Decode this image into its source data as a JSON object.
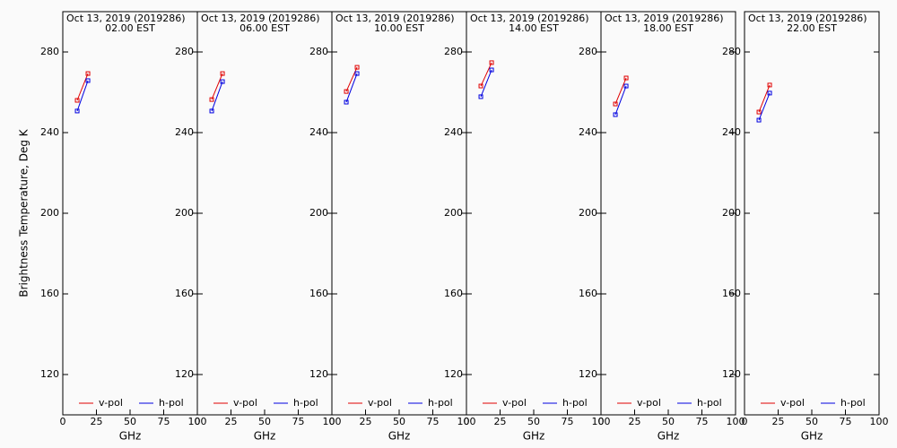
{
  "chart_data": [
    {
      "type": "line",
      "title": "Oct 13, 2019 (2019286)",
      "subtitle": "02.00 EST",
      "ylabel": "Brightness Temperature, Deg K",
      "xlabel": "GHz",
      "x": [
        10.7,
        18.7
      ],
      "xlim": [
        0,
        100
      ],
      "xticks": [
        0,
        25,
        50,
        75,
        100
      ],
      "ylim": [
        100,
        300
      ],
      "yticks": [
        120,
        160,
        200,
        240,
        280
      ],
      "series": [
        {
          "name": "v-pol",
          "color": "#e00000",
          "values": [
            256.0,
            269.3
          ]
        },
        {
          "name": "h-pol",
          "color": "#0000e0",
          "values": [
            250.7,
            265.8
          ]
        }
      ]
    },
    {
      "type": "line",
      "title": "Oct 13, 2019 (2019286)",
      "subtitle": "06.00 EST",
      "xlabel": "GHz",
      "x": [
        10.7,
        18.7
      ],
      "xlim": [
        0,
        100
      ],
      "xticks": [
        0,
        25,
        50,
        75,
        100
      ],
      "ylim": [
        100,
        300
      ],
      "yticks": [
        120,
        160,
        200,
        240,
        280
      ],
      "series": [
        {
          "name": "v-pol",
          "color": "#e00000",
          "values": [
            256.4,
            269.3
          ]
        },
        {
          "name": "h-pol",
          "color": "#0000e0",
          "values": [
            250.7,
            265.3
          ]
        }
      ]
    },
    {
      "type": "line",
      "title": "Oct 13, 2019 (2019286)",
      "subtitle": "10.00 EST",
      "xlabel": "GHz",
      "x": [
        10.7,
        18.7
      ],
      "xlim": [
        0,
        100
      ],
      "xticks": [
        0,
        25,
        50,
        75,
        100
      ],
      "ylim": [
        100,
        300
      ],
      "yticks": [
        120,
        160,
        200,
        240,
        280
      ],
      "series": [
        {
          "name": "v-pol",
          "color": "#e00000",
          "values": [
            260.4,
            272.4
          ]
        },
        {
          "name": "h-pol",
          "color": "#0000e0",
          "values": [
            255.1,
            269.3
          ]
        }
      ]
    },
    {
      "type": "line",
      "title": "Oct 13, 2019 (2019286)",
      "subtitle": "14.00 EST",
      "xlabel": "GHz",
      "x": [
        10.7,
        18.7
      ],
      "xlim": [
        0,
        100
      ],
      "xticks": [
        0,
        25,
        50,
        75,
        100
      ],
      "ylim": [
        100,
        300
      ],
      "yticks": [
        120,
        160,
        200,
        240,
        280
      ],
      "series": [
        {
          "name": "v-pol",
          "color": "#e00000",
          "values": [
            263.1,
            274.7
          ]
        },
        {
          "name": "h-pol",
          "color": "#0000e0",
          "values": [
            257.8,
            271.1
          ]
        }
      ]
    },
    {
      "type": "line",
      "title": "Oct 13, 2019 (2019286)",
      "subtitle": "18.00 EST",
      "xlabel": "GHz",
      "x": [
        10.7,
        18.7
      ],
      "xlim": [
        0,
        100
      ],
      "xticks": [
        0,
        25,
        50,
        75,
        100
      ],
      "ylim": [
        100,
        300
      ],
      "yticks": [
        120,
        160,
        200,
        240,
        280
      ],
      "series": [
        {
          "name": "v-pol",
          "color": "#e00000",
          "values": [
            254.2,
            267.1
          ]
        },
        {
          "name": "h-pol",
          "color": "#0000e0",
          "values": [
            248.9,
            263.1
          ]
        }
      ]
    },
    {
      "type": "line",
      "title": "Oct 13, 2019 (2019286)",
      "subtitle": "22.00 EST",
      "xlabel": "GHz",
      "x": [
        10.7,
        18.7
      ],
      "xlim": [
        0,
        100
      ],
      "xticks": [
        0,
        25,
        50,
        75,
        100
      ],
      "ylim": [
        100,
        300
      ],
      "yticks": [
        120,
        160,
        200,
        240,
        280
      ],
      "series": [
        {
          "name": "v-pol",
          "color": "#e00000",
          "values": [
            250.2,
            263.6
          ]
        },
        {
          "name": "h-pol",
          "color": "#0000e0",
          "values": [
            246.2,
            259.6
          ]
        }
      ]
    }
  ]
}
